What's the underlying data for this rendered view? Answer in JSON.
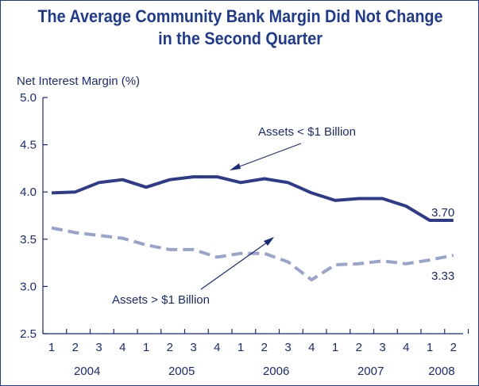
{
  "chart_data": {
    "type": "line",
    "title_line1": "The Average Community Bank Margin Did Not Change",
    "title_line2": "in the Second Quarter",
    "ylabel": "Net Interest Margin (%)",
    "ylim": [
      2.5,
      5.0
    ],
    "yticks": [
      "5.0",
      "4.5",
      "4.0",
      "3.5",
      "3.0",
      "2.5"
    ],
    "yticks_values": [
      5.0,
      4.5,
      4.0,
      3.5,
      3.0,
      2.5
    ],
    "quarter_labels": [
      "1",
      "2",
      "3",
      "4",
      "1",
      "2",
      "3",
      "4",
      "1",
      "2",
      "3",
      "4",
      "1",
      "2",
      "3",
      "4",
      "1",
      "2"
    ],
    "year_labels": [
      "2004",
      "2005",
      "2006",
      "2007",
      "2008"
    ],
    "grid": false,
    "series": [
      {
        "name": "Assets < $1 Billion",
        "color": "#2e3a8c",
        "style": "solid",
        "values": [
          3.99,
          4.0,
          4.1,
          4.13,
          4.05,
          4.13,
          4.16,
          4.16,
          4.1,
          4.14,
          4.1,
          3.99,
          3.91,
          3.93,
          3.93,
          3.85,
          3.7,
          3.7
        ],
        "end_label": "3.70"
      },
      {
        "name": "Assets > $1 Billion",
        "color": "#98a4cc",
        "style": "dashed",
        "values": [
          3.62,
          3.57,
          3.54,
          3.51,
          3.44,
          3.39,
          3.39,
          3.31,
          3.35,
          3.35,
          3.26,
          3.07,
          3.23,
          3.24,
          3.27,
          3.24,
          3.28,
          3.33
        ],
        "end_label": "3.33"
      }
    ]
  }
}
